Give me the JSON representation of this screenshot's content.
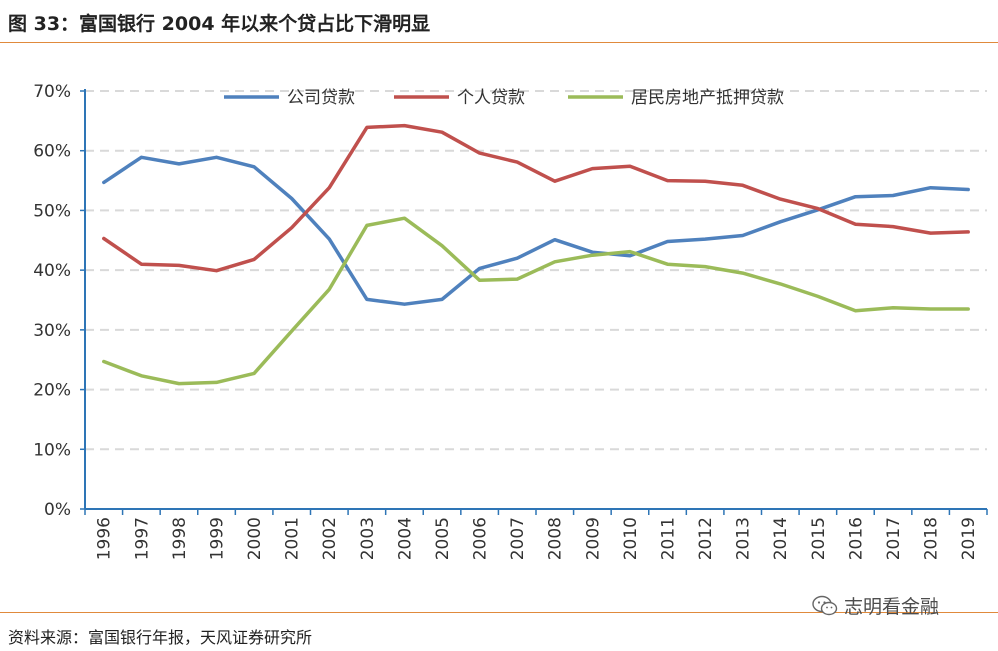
{
  "title": "图 33：富国银行 2004 年以来个贷占比下滑明显",
  "source": "资料来源：富国银行年报，天风证券研究所",
  "watermark": "志明看金融",
  "chart_data": {
    "type": "line",
    "x": [
      "1996",
      "1997",
      "1998",
      "1999",
      "2000",
      "2001",
      "2002",
      "2003",
      "2004",
      "2005",
      "2006",
      "2007",
      "2008",
      "2009",
      "2010",
      "2011",
      "2012",
      "2013",
      "2014",
      "2015",
      "2016",
      "2017",
      "2018",
      "2019"
    ],
    "yticks": [
      "0%",
      "10%",
      "20%",
      "30%",
      "40%",
      "50%",
      "60%",
      "70%"
    ],
    "ylim": [
      0,
      70
    ],
    "grid": true,
    "legend": "top",
    "series": [
      {
        "name": "公司贷款",
        "color": "#4f81bd",
        "values": [
          54.7,
          58.9,
          57.8,
          58.9,
          57.3,
          52.0,
          45.2,
          35.1,
          34.3,
          35.1,
          40.3,
          42.0,
          45.1,
          43.0,
          42.4,
          44.8,
          45.2,
          45.8,
          48.1,
          50.1,
          52.3,
          52.5,
          53.8,
          53.5
        ]
      },
      {
        "name": "个人贷款",
        "color": "#c0504d",
        "values": [
          45.3,
          41.0,
          40.8,
          39.9,
          41.8,
          47.1,
          53.8,
          63.9,
          64.2,
          63.1,
          59.6,
          58.1,
          54.9,
          57.0,
          57.4,
          55.0,
          54.9,
          54.2,
          51.9,
          50.3,
          47.7,
          47.3,
          46.2,
          46.4
        ]
      },
      {
        "name": "居民房地产抵押贷款",
        "color": "#9bbb59",
        "values": [
          24.7,
          22.3,
          21.0,
          21.2,
          22.7,
          29.8,
          36.8,
          47.5,
          48.7,
          44.1,
          38.3,
          38.5,
          41.4,
          42.5,
          43.1,
          41.0,
          40.6,
          39.5,
          37.7,
          35.6,
          33.2,
          33.7,
          33.5,
          33.5
        ]
      }
    ]
  }
}
